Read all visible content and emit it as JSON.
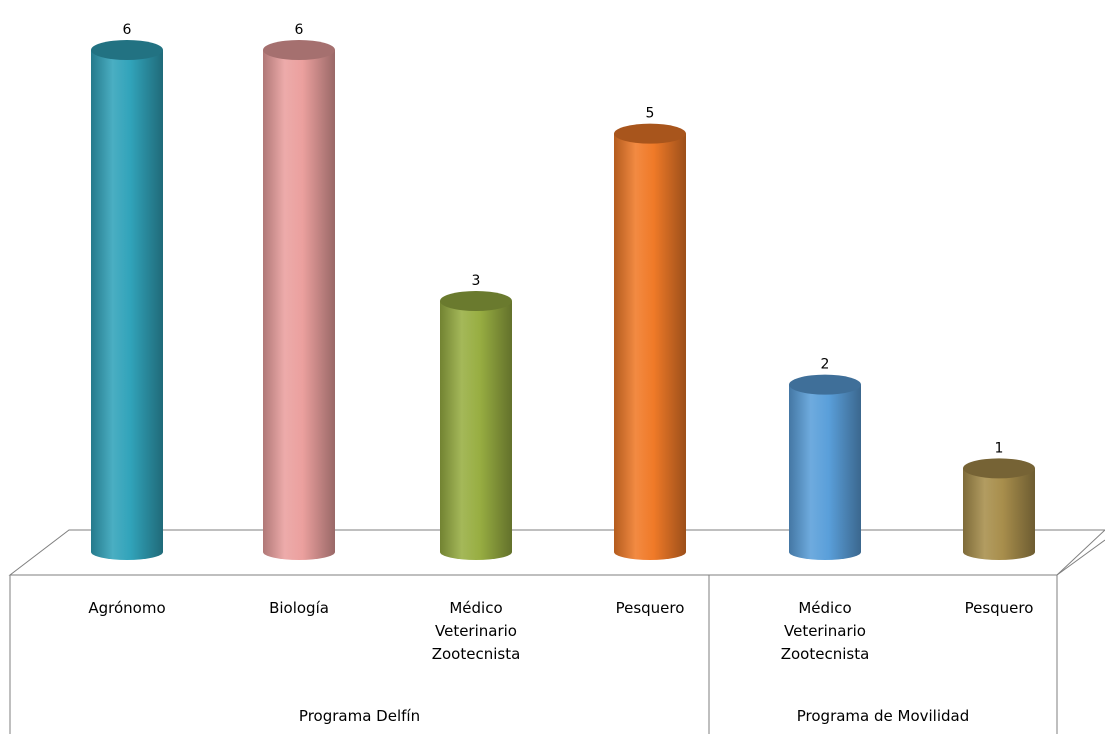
{
  "chart_data": {
    "type": "bar",
    "style": "3d-cylinder",
    "ylim": [
      0,
      6
    ],
    "groups": [
      {
        "label": "Programa Delfín",
        "items": [
          {
            "category": [
              "Agrónomo"
            ],
            "value": 6,
            "color": "#31A3BA"
          },
          {
            "category": [
              "Biología"
            ],
            "value": 6,
            "color": "#EBA09E"
          },
          {
            "category": [
              "Médico",
              "Veterinario",
              "Zootecnista"
            ],
            "value": 3,
            "color": "#98AE42"
          },
          {
            "category": [
              "Pesquero"
            ],
            "value": 5,
            "color": "#F07A28"
          }
        ]
      },
      {
        "label": "Programa de Movilidad",
        "items": [
          {
            "category": [
              "Médico",
              "Veterinario",
              "Zootecnista"
            ],
            "value": 2,
            "color": "#5A9FDA"
          },
          {
            "category": [
              "Pesquero"
            ],
            "value": 1,
            "color": "#A88E4C"
          }
        ]
      }
    ]
  }
}
